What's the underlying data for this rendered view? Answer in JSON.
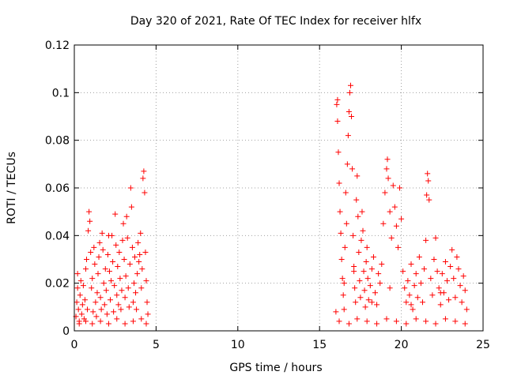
{
  "chart_data": {
    "type": "scatter",
    "title": "Day 320 of 2021, Rate Of TEC Index for receiver hlfx",
    "xlabel": "GPS time / hours",
    "ylabel": "ROTI / TECUs",
    "xlim": [
      0,
      25
    ],
    "ylim": [
      0,
      0.12
    ],
    "x_ticks": [
      0,
      5,
      10,
      15,
      20,
      25
    ],
    "x_tick_labels": [
      "0",
      "5",
      "10",
      "15",
      "20",
      "25"
    ],
    "y_ticks": [
      0,
      0.02,
      0.04,
      0.06,
      0.08,
      0.1,
      0.12
    ],
    "y_tick_labels": [
      "0",
      "0.02",
      "0.04",
      "0.06",
      "0.08",
      "0.1",
      "0.12"
    ],
    "grid": true,
    "marker": "plus",
    "color": "#ff0000",
    "series": [
      {
        "points": [
          [
            0.1,
            0.006
          ],
          [
            0.15,
            0.012
          ],
          [
            0.2,
            0.018
          ],
          [
            0.2,
            0.024
          ],
          [
            0.25,
            0.009
          ],
          [
            0.3,
            0.004
          ],
          [
            0.35,
            0.015
          ],
          [
            0.4,
            0.021
          ],
          [
            0.45,
            0.007
          ],
          [
            0.5,
            0.011
          ],
          [
            0.55,
            0.019
          ],
          [
            0.6,
            0.005
          ],
          [
            0.65,
            0.013
          ],
          [
            0.7,
            0.026
          ],
          [
            0.75,
            0.03
          ],
          [
            0.8,
            0.009
          ],
          [
            0.85,
            0.042
          ],
          [
            0.9,
            0.05
          ],
          [
            0.95,
            0.046
          ],
          [
            1.0,
            0.033
          ],
          [
            1.05,
            0.018
          ],
          [
            1.1,
            0.022
          ],
          [
            1.15,
            0.008
          ],
          [
            1.2,
            0.035
          ],
          [
            1.25,
            0.028
          ],
          [
            1.3,
            0.012
          ],
          [
            1.35,
            0.006
          ],
          [
            1.4,
            0.016
          ],
          [
            1.45,
            0.024
          ],
          [
            1.5,
            0.031
          ],
          [
            1.55,
            0.037
          ],
          [
            1.6,
            0.014
          ],
          [
            1.65,
            0.009
          ],
          [
            1.7,
            0.041
          ],
          [
            1.75,
            0.034
          ],
          [
            1.8,
            0.02
          ],
          [
            1.85,
            0.011
          ],
          [
            1.9,
            0.026
          ],
          [
            1.95,
            0.017
          ],
          [
            2.0,
            0.007
          ],
          [
            2.05,
            0.032
          ],
          [
            2.1,
            0.04
          ],
          [
            2.15,
            0.025
          ],
          [
            2.2,
            0.013
          ],
          [
            2.25,
            0.021
          ],
          [
            2.3,
            0.04
          ],
          [
            2.35,
            0.029
          ],
          [
            2.4,
            0.008
          ],
          [
            2.45,
            0.019
          ],
          [
            2.5,
            0.049
          ],
          [
            2.55,
            0.036
          ],
          [
            2.6,
            0.015
          ],
          [
            2.65,
            0.027
          ],
          [
            2.7,
            0.011
          ],
          [
            2.75,
            0.033
          ],
          [
            2.8,
            0.022
          ],
          [
            2.85,
            0.009
          ],
          [
            2.9,
            0.017
          ],
          [
            2.95,
            0.038
          ],
          [
            3.0,
            0.045
          ],
          [
            3.05,
            0.03
          ],
          [
            3.1,
            0.014
          ],
          [
            3.15,
            0.023
          ],
          [
            3.2,
            0.048
          ],
          [
            3.25,
            0.039
          ],
          [
            3.3,
            0.018
          ],
          [
            3.35,
            0.01
          ],
          [
            3.4,
            0.028
          ],
          [
            3.45,
            0.06
          ],
          [
            3.5,
            0.052
          ],
          [
            3.55,
            0.035
          ],
          [
            3.6,
            0.012
          ],
          [
            3.65,
            0.02
          ],
          [
            3.7,
            0.031
          ],
          [
            3.75,
            0.016
          ],
          [
            3.8,
            0.009
          ],
          [
            3.85,
            0.024
          ],
          [
            3.9,
            0.037
          ],
          [
            3.95,
            0.029
          ],
          [
            4.0,
            0.032
          ],
          [
            4.05,
            0.041
          ],
          [
            4.1,
            0.018
          ],
          [
            4.15,
            0.026
          ],
          [
            4.2,
            0.064
          ],
          [
            4.25,
            0.067
          ],
          [
            4.3,
            0.058
          ],
          [
            4.35,
            0.033
          ],
          [
            4.4,
            0.021
          ],
          [
            4.45,
            0.012
          ],
          [
            4.5,
            0.007
          ],
          [
            0.3,
            0.003
          ],
          [
            0.7,
            0.004
          ],
          [
            1.1,
            0.003
          ],
          [
            1.6,
            0.004
          ],
          [
            2.1,
            0.003
          ],
          [
            2.6,
            0.005
          ],
          [
            3.1,
            0.003
          ],
          [
            3.6,
            0.004
          ],
          [
            4.1,
            0.005
          ],
          [
            4.4,
            0.003
          ],
          [
            16.0,
            0.008
          ],
          [
            16.05,
            0.095
          ],
          [
            16.1,
            0.097
          ],
          [
            16.1,
            0.088
          ],
          [
            16.15,
            0.075
          ],
          [
            16.2,
            0.062
          ],
          [
            16.25,
            0.05
          ],
          [
            16.3,
            0.041
          ],
          [
            16.35,
            0.03
          ],
          [
            16.4,
            0.022
          ],
          [
            16.45,
            0.015
          ],
          [
            16.5,
            0.009
          ],
          [
            16.55,
            0.035
          ],
          [
            16.6,
            0.058
          ],
          [
            16.65,
            0.045
          ],
          [
            16.7,
            0.07
          ],
          [
            16.75,
            0.082
          ],
          [
            16.8,
            0.092
          ],
          [
            16.85,
            0.1
          ],
          [
            16.9,
            0.103
          ],
          [
            16.95,
            0.09
          ],
          [
            17.0,
            0.068
          ],
          [
            17.05,
            0.04
          ],
          [
            17.1,
            0.027
          ],
          [
            17.15,
            0.018
          ],
          [
            17.2,
            0.012
          ],
          [
            17.25,
            0.055
          ],
          [
            17.3,
            0.065
          ],
          [
            17.35,
            0.048
          ],
          [
            17.4,
            0.033
          ],
          [
            17.45,
            0.021
          ],
          [
            17.5,
            0.014
          ],
          [
            17.55,
            0.038
          ],
          [
            17.6,
            0.05
          ],
          [
            17.65,
            0.042
          ],
          [
            17.7,
            0.025
          ],
          [
            17.75,
            0.017
          ],
          [
            17.8,
            0.01
          ],
          [
            17.85,
            0.029
          ],
          [
            17.9,
            0.035
          ],
          [
            17.95,
            0.022
          ],
          [
            18.0,
            0.013
          ],
          [
            18.1,
            0.019
          ],
          [
            18.2,
            0.026
          ],
          [
            18.3,
            0.031
          ],
          [
            18.4,
            0.016
          ],
          [
            18.5,
            0.011
          ],
          [
            18.6,
            0.024
          ],
          [
            18.7,
            0.02
          ],
          [
            18.8,
            0.028
          ],
          [
            18.9,
            0.045
          ],
          [
            19.0,
            0.058
          ],
          [
            19.1,
            0.068
          ],
          [
            19.15,
            0.072
          ],
          [
            19.2,
            0.064
          ],
          [
            19.3,
            0.05
          ],
          [
            19.4,
            0.039
          ],
          [
            19.5,
            0.061
          ],
          [
            19.6,
            0.052
          ],
          [
            19.7,
            0.044
          ],
          [
            19.8,
            0.035
          ],
          [
            19.9,
            0.06
          ],
          [
            20.0,
            0.047
          ],
          [
            20.1,
            0.025
          ],
          [
            20.2,
            0.018
          ],
          [
            20.3,
            0.012
          ],
          [
            20.4,
            0.021
          ],
          [
            20.5,
            0.015
          ],
          [
            20.6,
            0.028
          ],
          [
            20.7,
            0.009
          ],
          [
            20.8,
            0.019
          ],
          [
            20.9,
            0.024
          ],
          [
            21.0,
            0.014
          ],
          [
            21.1,
            0.031
          ],
          [
            21.2,
            0.02
          ],
          [
            21.3,
            0.012
          ],
          [
            21.4,
            0.026
          ],
          [
            21.5,
            0.038
          ],
          [
            21.55,
            0.057
          ],
          [
            21.6,
            0.066
          ],
          [
            21.65,
            0.063
          ],
          [
            21.7,
            0.055
          ],
          [
            21.8,
            0.022
          ],
          [
            21.9,
            0.015
          ],
          [
            22.0,
            0.03
          ],
          [
            22.1,
            0.039
          ],
          [
            22.2,
            0.025
          ],
          [
            22.3,
            0.018
          ],
          [
            22.4,
            0.011
          ],
          [
            22.5,
            0.024
          ],
          [
            22.6,
            0.016
          ],
          [
            22.7,
            0.029
          ],
          [
            22.8,
            0.021
          ],
          [
            22.9,
            0.013
          ],
          [
            23.0,
            0.027
          ],
          [
            23.1,
            0.034
          ],
          [
            23.2,
            0.022
          ],
          [
            23.3,
            0.014
          ],
          [
            23.4,
            0.031
          ],
          [
            23.5,
            0.026
          ],
          [
            23.6,
            0.019
          ],
          [
            23.7,
            0.012
          ],
          [
            23.8,
            0.023
          ],
          [
            23.9,
            0.017
          ],
          [
            24.0,
            0.009
          ],
          [
            16.2,
            0.004
          ],
          [
            16.8,
            0.003
          ],
          [
            17.3,
            0.005
          ],
          [
            17.9,
            0.004
          ],
          [
            18.5,
            0.003
          ],
          [
            19.1,
            0.005
          ],
          [
            19.7,
            0.004
          ],
          [
            20.3,
            0.003
          ],
          [
            20.9,
            0.005
          ],
          [
            21.5,
            0.004
          ],
          [
            22.1,
            0.003
          ],
          [
            22.7,
            0.005
          ],
          [
            23.3,
            0.004
          ],
          [
            23.9,
            0.003
          ],
          [
            16.5,
            0.02
          ],
          [
            17.1,
            0.025
          ],
          [
            18.2,
            0.012
          ],
          [
            19.3,
            0.018
          ],
          [
            20.6,
            0.011
          ],
          [
            22.4,
            0.016
          ]
        ]
      }
    ]
  }
}
